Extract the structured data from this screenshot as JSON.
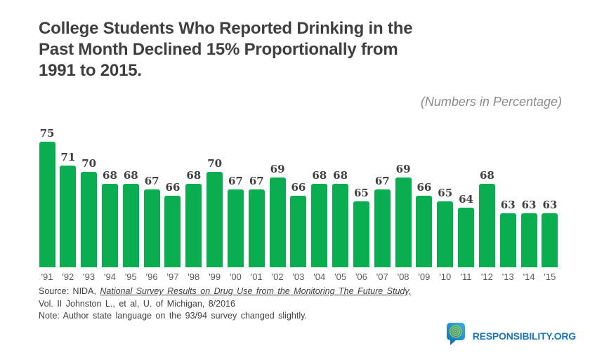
{
  "title": {
    "lines": [
      "College Students Who Reported Drinking in the",
      "Past Month Declined 15% Proportionally from",
      "1991 to 2015."
    ]
  },
  "subtitle": "(Numbers in Percentage)",
  "chart_data": {
    "type": "bar",
    "title": "College Students Who Reported Drinking in the Past Month Declined 15% Proportionally from 1991 to 2015.",
    "subtitle": "(Numbers in Percentage)",
    "categories": [
      "'91",
      "'92",
      "'93",
      "'94",
      "'95",
      "'96",
      "'97",
      "'98",
      "'99",
      "'00",
      "'01",
      "'02",
      "'03",
      "'04",
      "'05",
      "'06",
      "'07",
      "'08",
      "'09",
      "'10",
      "'11",
      "'12",
      "'13",
      "'14",
      "'15"
    ],
    "values": [
      75,
      71,
      70,
      68,
      68,
      67,
      66,
      68,
      70,
      67,
      67,
      69,
      66,
      68,
      68,
      65,
      67,
      69,
      66,
      65,
      64,
      68,
      63,
      63,
      63
    ],
    "xlabel": "",
    "ylabel": "",
    "ylim": [
      54,
      77
    ],
    "grid": false,
    "legend": false,
    "data_labels": true,
    "bar_color": "#0aae50",
    "value_label_color": "#404040",
    "year_label_color": "#595959"
  },
  "source": {
    "line1_prefix": "Source: NIDA, ",
    "line1_study": "National Survey Results on Drug Use from the Monitoring The Future Study,",
    "line2": "Vol. II Johnston L., et al, U. of Michigan, 8/2016",
    "line3": "Note: Author state language on the 93/94 survey changed slightly."
  },
  "footer": {
    "logo_text": "RESPONSIBILITY.ORG",
    "logo_icon": "speech-bubble-target-icon",
    "logo_blue": "#1c75bc",
    "logo_bubble_blue_dark": "#1374b8",
    "logo_bubble_blue_light": "#3db3e3",
    "logo_ring_green": "#9aca3c"
  }
}
